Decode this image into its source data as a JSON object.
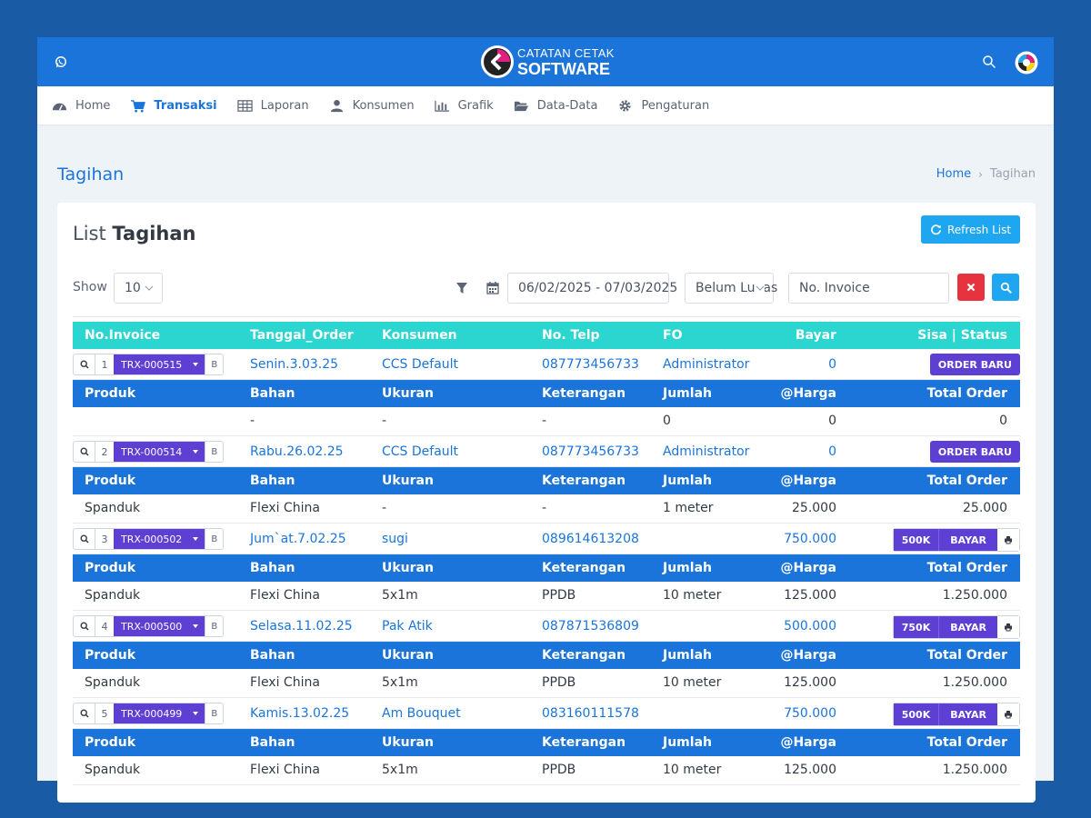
{
  "app": {
    "logo_line1": "CATATAN CETAK",
    "logo_line2": "SOFTWARE",
    "accent": "#1b74d9",
    "header_teal": "#2ad6cf",
    "badge_purple": "#5d3fd3",
    "danger": "#e5343f",
    "info": "#1ea6f0"
  },
  "nav": [
    {
      "label": "Home",
      "icon": "dashboard-icon"
    },
    {
      "label": "Transaksi",
      "icon": "cart-icon"
    },
    {
      "label": "Laporan",
      "icon": "table-icon"
    },
    {
      "label": "Konsumen",
      "icon": "user-icon"
    },
    {
      "label": "Grafik",
      "icon": "bar-chart-icon"
    },
    {
      "label": "Data-Data",
      "icon": "folder-open-icon"
    },
    {
      "label": "Pengaturan",
      "icon": "gear-icon"
    }
  ],
  "page": {
    "title": "Tagihan",
    "breadcrumb_home": "Home",
    "breadcrumb_current": "Tagihan"
  },
  "card": {
    "title_light": "List",
    "title_bold": "Tagihan",
    "refresh_label": "Refresh List"
  },
  "filters": {
    "show_label": "Show",
    "show_value": "10",
    "date_range": "06/02/2025 - 07/03/2025",
    "status_value": "Belum Lunas",
    "invoice_placeholder": "No. Invoice"
  },
  "table": {
    "headers": {
      "invoice": "No.Invoice",
      "date": "Tanggal_Order",
      "customer": "Konsumen",
      "phone": "No. Telp",
      "fo": "FO",
      "paid": "Bayar",
      "status": "Sisa | Status"
    },
    "sub_headers": {
      "product": "Produk",
      "material": "Bahan",
      "size": "Ukuran",
      "note": "Keterangan",
      "qty": "Jumlah",
      "price": "@Harga",
      "total": "Total Order"
    },
    "orders": [
      {
        "no": "1",
        "invoice": "TRX-000515",
        "b_label": "B",
        "date": "Senin.3.03.25",
        "customer": "CCS Default",
        "phone": "087773456733",
        "fo": "Administrator",
        "paid": "0",
        "status_badge": "ORDER BARU",
        "remaining": "",
        "pay_label": "",
        "item": {
          "product": "",
          "material": "-",
          "size": "-",
          "note": "-",
          "qty": "0",
          "price": "0",
          "total": "0"
        }
      },
      {
        "no": "2",
        "invoice": "TRX-000514",
        "b_label": "B",
        "date": "Rabu.26.02.25",
        "customer": "CCS Default",
        "phone": "087773456733",
        "fo": "Administrator",
        "paid": "0",
        "status_badge": "ORDER BARU",
        "remaining": "",
        "pay_label": "",
        "item": {
          "product": "Spanduk",
          "material": "Flexi China",
          "size": "-",
          "note": "-",
          "qty": "1 meter",
          "price": "25.000",
          "total": "25.000"
        }
      },
      {
        "no": "3",
        "invoice": "TRX-000502",
        "b_label": "B",
        "date": "Jum`at.7.02.25",
        "customer": "sugi",
        "phone": "089614613208",
        "fo": "",
        "paid": "750.000",
        "status_badge": "",
        "remaining": "500K",
        "pay_label": "BAYAR",
        "item": {
          "product": "Spanduk",
          "material": "Flexi China",
          "size": "5x1m",
          "note": "PPDB",
          "qty": "10 meter",
          "price": "125.000",
          "total": "1.250.000"
        }
      },
      {
        "no": "4",
        "invoice": "TRX-000500",
        "b_label": "B",
        "date": "Selasa.11.02.25",
        "customer": "Pak Atik",
        "phone": "087871536809",
        "fo": "",
        "paid": "500.000",
        "status_badge": "",
        "remaining": "750K",
        "pay_label": "BAYAR",
        "item": {
          "product": "Spanduk",
          "material": "Flexi China",
          "size": "5x1m",
          "note": "PPDB",
          "qty": "10 meter",
          "price": "125.000",
          "total": "1.250.000"
        }
      },
      {
        "no": "5",
        "invoice": "TRX-000499",
        "b_label": "B",
        "date": "Kamis.13.02.25",
        "customer": "Am Bouquet",
        "phone": "083160111578",
        "fo": "",
        "paid": "750.000",
        "status_badge": "",
        "remaining": "500K",
        "pay_label": "BAYAR",
        "item": {
          "product": "Spanduk",
          "material": "Flexi China",
          "size": "5x1m",
          "note": "PPDB",
          "qty": "10 meter",
          "price": "125.000",
          "total": "1.250.000"
        }
      }
    ]
  }
}
